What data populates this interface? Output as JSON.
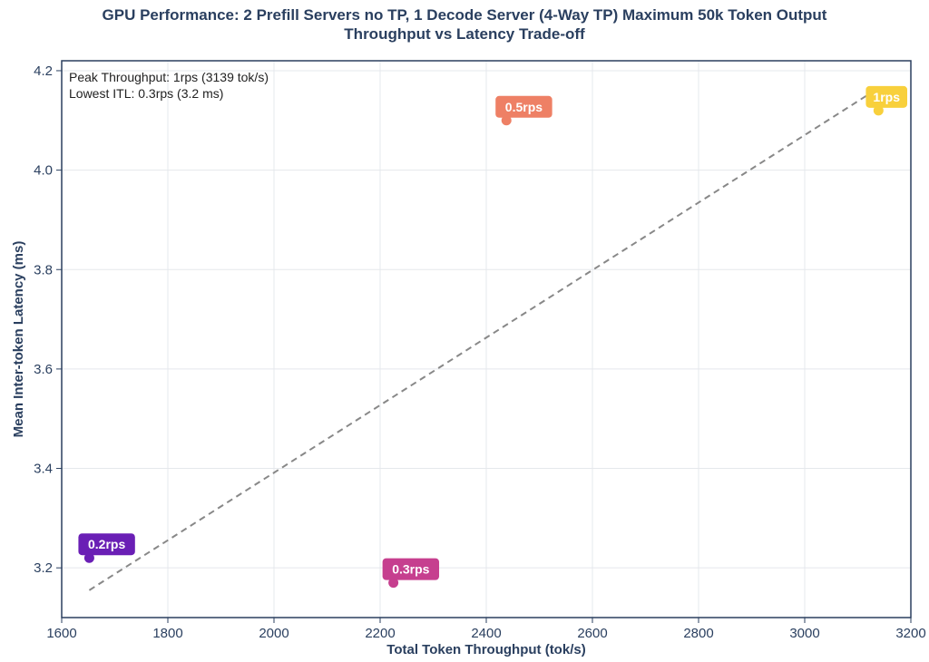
{
  "chart_data": {
    "type": "scatter",
    "title_lines": [
      "GPU Performance: 2 Prefill Servers no TP, 1 Decode Server (4-Way TP) Maximum 50k Token Output",
      "Throughput vs Latency Trade-off"
    ],
    "xlabel": "Total Token Throughput (tok/s)",
    "ylabel": "Mean Inter-token Latency (ms)",
    "xlim": [
      1600,
      3200
    ],
    "ylim": [
      3.1,
      4.22
    ],
    "x_ticks": [
      1600,
      1800,
      2000,
      2200,
      2400,
      2600,
      2800,
      3000,
      3200
    ],
    "x_tick_labels": [
      "1600",
      "1800",
      "2000",
      "2200",
      "2400",
      "2600",
      "2800",
      "3000",
      "3200"
    ],
    "y_ticks": [
      3.2,
      3.4,
      3.6,
      3.8,
      4.0,
      4.2
    ],
    "y_tick_labels": [
      "3.2",
      "3.4",
      "3.6",
      "3.8",
      "4.0",
      "4.2"
    ],
    "grid": true,
    "points": [
      {
        "label": "0.2rps",
        "x": 1652,
        "y": 3.22,
        "color": "#6a1fb5"
      },
      {
        "label": "0.3rps",
        "x": 2225,
        "y": 3.17,
        "color": "#c63f8f"
      },
      {
        "label": "0.5rps",
        "x": 2438,
        "y": 4.1,
        "color": "#ee8065"
      },
      {
        "label": "1rps",
        "x": 3139,
        "y": 4.12,
        "color": "#f8d03c"
      }
    ],
    "trend_line": {
      "x": [
        1652,
        3139
      ],
      "y": [
        3.155,
        4.165
      ],
      "color": "#888888",
      "style": "dashed"
    },
    "annotations": [
      "Peak Throughput: 1rps (3139 tok/s)",
      "Lowest ITL: 0.3rps (3.2 ms)"
    ]
  }
}
